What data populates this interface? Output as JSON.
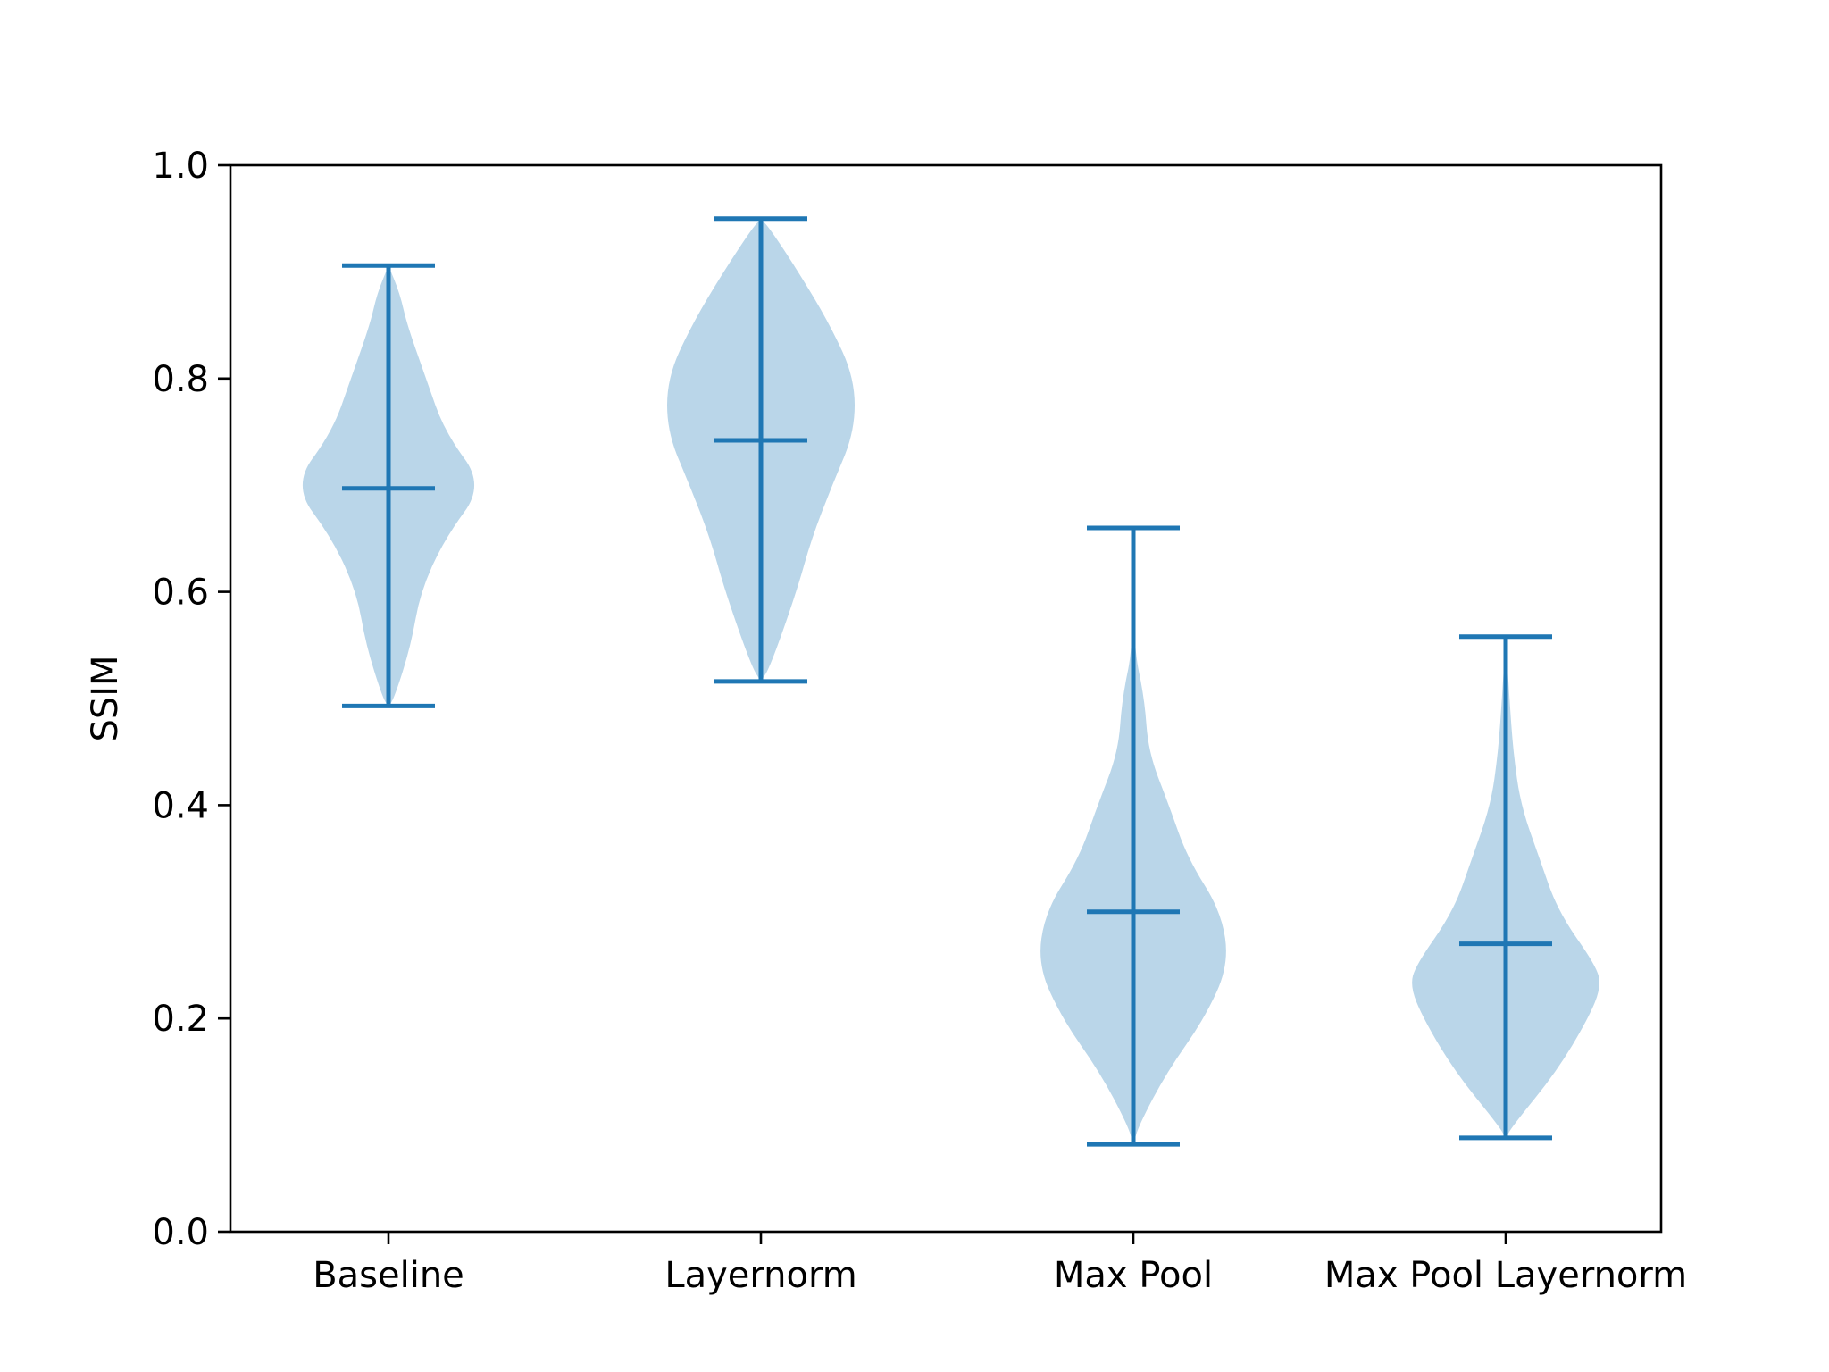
{
  "chart_data": {
    "type": "violin",
    "title": "",
    "xlabel": "",
    "ylabel": "SSIM",
    "ylim": [
      0.0,
      1.0
    ],
    "yticks": [
      "0.0",
      "0.2",
      "0.4",
      "0.6",
      "0.8",
      "1.0"
    ],
    "grid": false,
    "categories": [
      "Baseline",
      "Layernorm",
      "Max Pool",
      "Max Pool Layernorm"
    ],
    "colors": {
      "line": "#1f77b4",
      "fill": "#bad6e9"
    },
    "series": [
      {
        "category": "Baseline",
        "min": 0.493,
        "median": 0.697,
        "max": 0.906,
        "profile": [
          [
            0.493,
            0.0
          ],
          [
            0.5,
            0.03
          ],
          [
            0.55,
            0.12
          ],
          [
            0.6,
            0.17
          ],
          [
            0.65,
            0.3
          ],
          [
            0.7,
            0.51
          ],
          [
            0.75,
            0.3
          ],
          [
            0.8,
            0.2
          ],
          [
            0.85,
            0.1
          ],
          [
            0.88,
            0.06
          ],
          [
            0.906,
            0.0
          ]
        ]
      },
      {
        "category": "Layernorm",
        "min": 0.516,
        "median": 0.742,
        "max": 0.95,
        "profile": [
          [
            0.516,
            0.0
          ],
          [
            0.53,
            0.05
          ],
          [
            0.6,
            0.19
          ],
          [
            0.65,
            0.27
          ],
          [
            0.7,
            0.38
          ],
          [
            0.75,
            0.5
          ],
          [
            0.8,
            0.5
          ],
          [
            0.85,
            0.37
          ],
          [
            0.9,
            0.2
          ],
          [
            0.94,
            0.05
          ],
          [
            0.95,
            0.0
          ]
        ]
      },
      {
        "category": "Max Pool",
        "min": 0.082,
        "median": 0.3,
        "max": 0.66,
        "profile": [
          [
            0.082,
            0.0
          ],
          [
            0.1,
            0.03
          ],
          [
            0.15,
            0.18
          ],
          [
            0.2,
            0.38
          ],
          [
            0.25,
            0.51
          ],
          [
            0.3,
            0.47
          ],
          [
            0.35,
            0.29
          ],
          [
            0.4,
            0.19
          ],
          [
            0.45,
            0.08
          ],
          [
            0.5,
            0.06
          ],
          [
            0.55,
            0.0
          ],
          [
            0.66,
            0.0
          ]
        ]
      },
      {
        "category": "Max Pool Layernorm",
        "min": 0.088,
        "median": 0.27,
        "max": 0.558,
        "profile": [
          [
            0.088,
            0.0
          ],
          [
            0.1,
            0.04
          ],
          [
            0.15,
            0.27
          ],
          [
            0.2,
            0.44
          ],
          [
            0.23,
            0.51
          ],
          [
            0.25,
            0.48
          ],
          [
            0.3,
            0.28
          ],
          [
            0.35,
            0.18
          ],
          [
            0.4,
            0.08
          ],
          [
            0.45,
            0.04
          ],
          [
            0.5,
            0.02
          ],
          [
            0.558,
            0.0
          ]
        ]
      }
    ]
  }
}
